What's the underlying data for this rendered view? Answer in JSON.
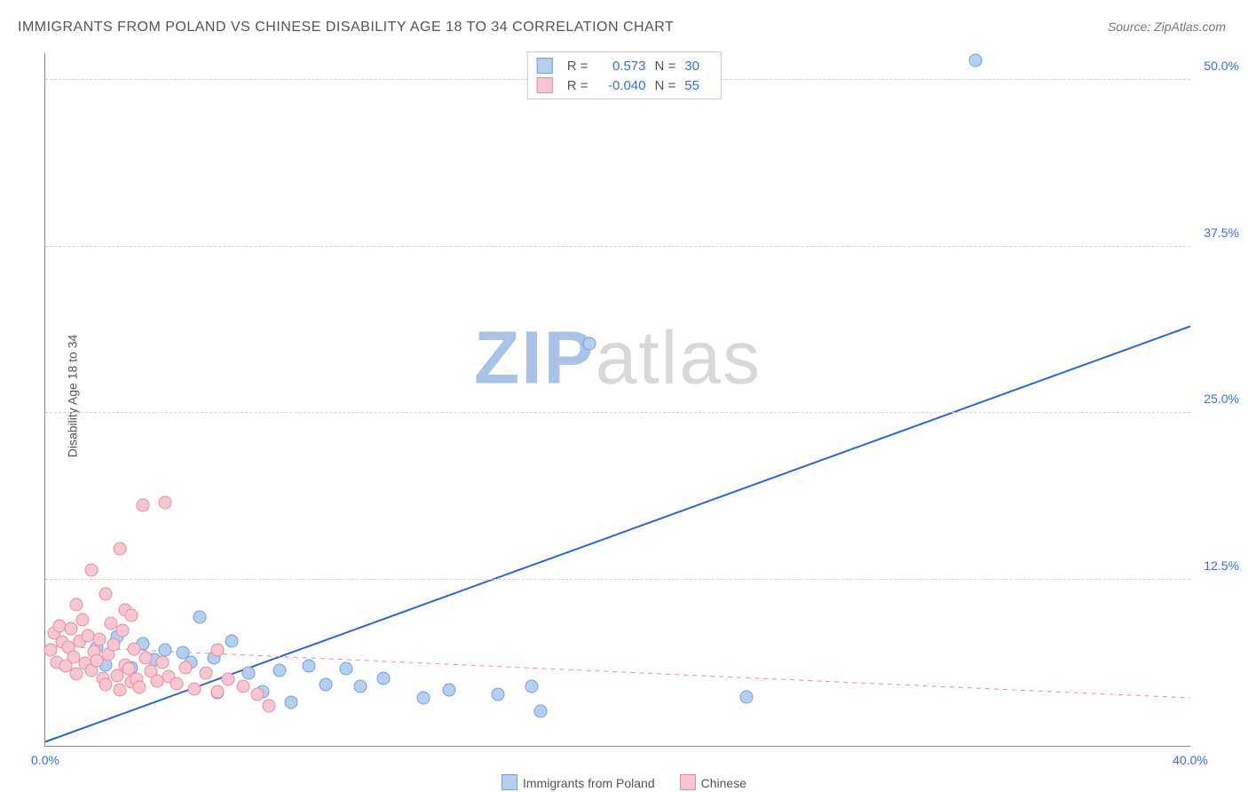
{
  "title": "IMMIGRANTS FROM POLAND VS CHINESE DISABILITY AGE 18 TO 34 CORRELATION CHART",
  "source": "Source: ZipAtlas.com",
  "y_axis_label": "Disability Age 18 to 34",
  "watermark": {
    "part1": "ZIP",
    "part2": "atlas"
  },
  "chart": {
    "type": "scatter",
    "background_color": "#ffffff",
    "grid_color": "#d5d5d5",
    "xlim": [
      0,
      40
    ],
    "ylim": [
      0,
      52
    ],
    "x_ticks": [
      {
        "val": 0,
        "label": "0.0%"
      },
      {
        "val": 40,
        "label": "40.0%"
      }
    ],
    "y_ticks": [
      {
        "val": 12.5,
        "label": "12.5%"
      },
      {
        "val": 25.0,
        "label": "25.0%"
      },
      {
        "val": 37.5,
        "label": "37.5%"
      },
      {
        "val": 50.0,
        "label": "50.0%"
      }
    ],
    "marker_size": 13,
    "marker_border_width": 1,
    "series": [
      {
        "name": "Immigrants from Poland",
        "fill": "#b7cfee",
        "stroke": "#6f9fe0",
        "line_color": "#2d64d6",
        "line_width": 2,
        "line_dash": "none",
        "trend": {
          "x1": 0,
          "y1": 0.3,
          "x2": 40,
          "y2": 31.5
        },
        "R": "0.573",
        "N": "30",
        "points": [
          [
            1.8,
            7.4
          ],
          [
            2.1,
            6.1
          ],
          [
            2.5,
            8.2
          ],
          [
            3.0,
            5.9
          ],
          [
            3.4,
            7.7
          ],
          [
            3.8,
            6.5
          ],
          [
            4.2,
            7.2
          ],
          [
            4.8,
            7.0
          ],
          [
            5.1,
            6.3
          ],
          [
            5.4,
            9.7
          ],
          [
            5.9,
            6.6
          ],
          [
            6.5,
            7.9
          ],
          [
            6.0,
            4.0
          ],
          [
            7.1,
            5.5
          ],
          [
            7.6,
            4.1
          ],
          [
            8.2,
            5.7
          ],
          [
            8.6,
            3.3
          ],
          [
            9.2,
            6.0
          ],
          [
            9.8,
            4.6
          ],
          [
            10.5,
            5.8
          ],
          [
            11.0,
            4.5
          ],
          [
            11.8,
            5.1
          ],
          [
            13.2,
            3.6
          ],
          [
            14.1,
            4.2
          ],
          [
            15.8,
            3.9
          ],
          [
            17.0,
            4.5
          ],
          [
            17.3,
            2.6
          ],
          [
            19.0,
            30.2
          ],
          [
            24.5,
            3.7
          ],
          [
            32.5,
            51.5
          ]
        ]
      },
      {
        "name": "Chinese",
        "fill": "#f6c7d3",
        "stroke": "#e88aa4",
        "line_color": "#e88aa4",
        "line_width": 1,
        "line_dash": "5,5",
        "trend": {
          "x1": 0,
          "y1": 7.5,
          "x2": 40,
          "y2": 3.6
        },
        "R": "-0.040",
        "N": "55",
        "points": [
          [
            0.2,
            7.2
          ],
          [
            0.3,
            8.5
          ],
          [
            0.4,
            6.3
          ],
          [
            0.5,
            9.0
          ],
          [
            0.6,
            7.8
          ],
          [
            0.7,
            6.0
          ],
          [
            0.8,
            7.4
          ],
          [
            0.9,
            8.8
          ],
          [
            1.0,
            6.7
          ],
          [
            1.1,
            5.4
          ],
          [
            1.2,
            7.9
          ],
          [
            1.3,
            9.5
          ],
          [
            1.4,
            6.2
          ],
          [
            1.5,
            8.3
          ],
          [
            1.6,
            5.7
          ],
          [
            1.7,
            7.1
          ],
          [
            1.8,
            6.4
          ],
          [
            1.9,
            8.0
          ],
          [
            2.0,
            5.1
          ],
          [
            2.1,
            4.6
          ],
          [
            2.2,
            6.9
          ],
          [
            2.3,
            9.2
          ],
          [
            2.4,
            7.6
          ],
          [
            2.5,
            5.3
          ],
          [
            2.6,
            4.2
          ],
          [
            2.7,
            8.7
          ],
          [
            2.8,
            6.1
          ],
          [
            2.9,
            5.8
          ],
          [
            3.0,
            4.8
          ],
          [
            3.1,
            7.3
          ],
          [
            3.2,
            5.0
          ],
          [
            3.3,
            4.4
          ],
          [
            3.5,
            6.6
          ],
          [
            3.7,
            5.6
          ],
          [
            3.9,
            4.9
          ],
          [
            4.1,
            6.3
          ],
          [
            4.3,
            5.2
          ],
          [
            4.6,
            4.7
          ],
          [
            4.9,
            5.9
          ],
          [
            5.2,
            4.3
          ],
          [
            5.6,
            5.5
          ],
          [
            6.0,
            4.1
          ],
          [
            6.4,
            5.0
          ],
          [
            6.9,
            4.5
          ],
          [
            7.4,
            3.9
          ],
          [
            2.6,
            14.8
          ],
          [
            1.6,
            13.2
          ],
          [
            3.4,
            18.1
          ],
          [
            4.2,
            18.3
          ],
          [
            2.1,
            11.4
          ],
          [
            2.8,
            10.2
          ],
          [
            1.1,
            10.6
          ],
          [
            7.8,
            3.0
          ],
          [
            6.0,
            7.2
          ],
          [
            3.0,
            9.8
          ]
        ]
      }
    ],
    "legend_bottom": [
      {
        "label": "Immigrants from Poland",
        "series": 0
      },
      {
        "label": "Chinese",
        "series": 1
      }
    ]
  }
}
